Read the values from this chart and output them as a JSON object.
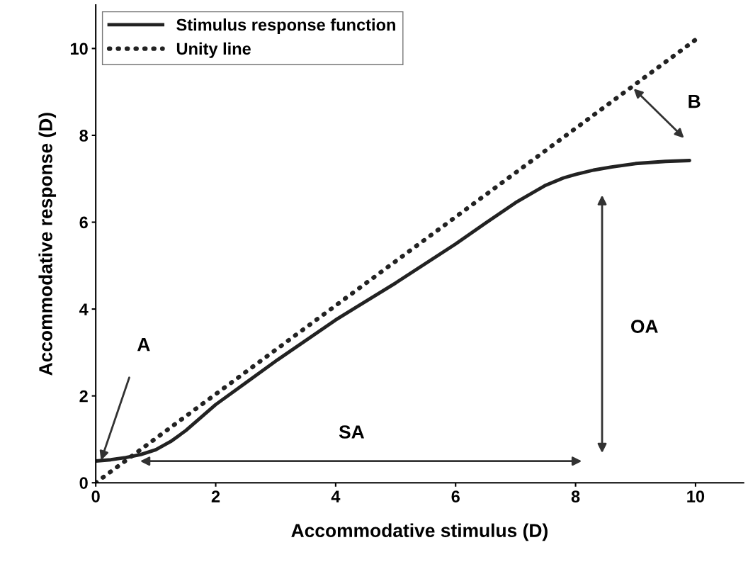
{
  "chart_data": {
    "type": "line",
    "xlabel": "Accommodative stimulus (D)",
    "ylabel": "Accommodative response (D)",
    "xlim": [
      0,
      10.8
    ],
    "ylim": [
      0,
      11
    ],
    "xticks": [
      0,
      2,
      4,
      6,
      8,
      10
    ],
    "yticks": [
      0,
      2,
      4,
      6,
      8,
      10
    ],
    "grid": false,
    "legend": "top left",
    "series": [
      {
        "name": "Stimulus response function",
        "color": "#222222",
        "line_style": "solid",
        "x": [
          0,
          0.25,
          0.5,
          0.75,
          1,
          1.25,
          1.5,
          2,
          2.5,
          3,
          4,
          5,
          6,
          6.5,
          7,
          7.5,
          7.8,
          8,
          8.3,
          8.6,
          9,
          9.5,
          9.9
        ],
        "values": [
          0.5,
          0.53,
          0.58,
          0.65,
          0.76,
          0.95,
          1.2,
          1.8,
          2.3,
          2.8,
          3.75,
          4.6,
          5.5,
          5.98,
          6.45,
          6.85,
          7.02,
          7.1,
          7.2,
          7.27,
          7.35,
          7.4,
          7.42
        ]
      },
      {
        "name": "Unity line",
        "color": "#222222",
        "line_style": "dotted",
        "x": [
          0,
          10
        ],
        "values": [
          0,
          10.2
        ]
      }
    ],
    "annotations": [
      "A",
      "SA",
      "OA",
      "B"
    ]
  }
}
